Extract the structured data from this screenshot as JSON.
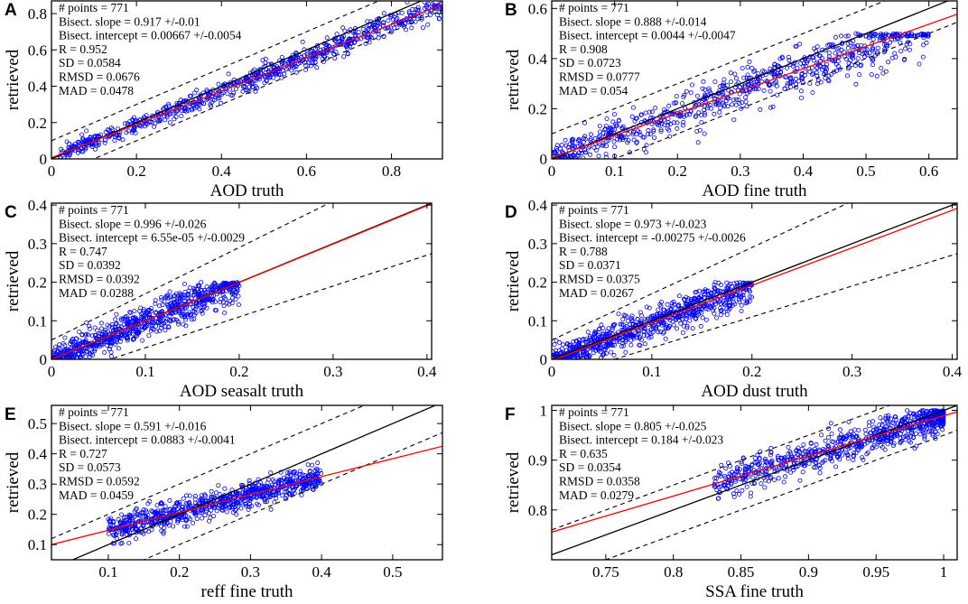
{
  "figure": {
    "ylabel": "retrieved",
    "marker_color": "#0000ff",
    "fit_color": "#ff0000",
    "identity_color": "#000000"
  },
  "chart_data": [
    {
      "letter": "A",
      "type": "scatter",
      "xlabel": "AOD truth",
      "ylabel": "retrieved",
      "xlim": [
        0,
        0.92
      ],
      "ylim": [
        0,
        0.87
      ],
      "xticks": [
        0,
        0.2,
        0.4,
        0.6,
        0.8
      ],
      "xticklabels": [
        "0",
        "0.2",
        "0.4",
        "0.6",
        "0.8"
      ],
      "yticks": [
        0,
        0.2,
        0.4,
        0.6,
        0.8
      ],
      "yticklabels": [
        "0",
        "0.2",
        "0.4",
        "0.6",
        "0.8"
      ],
      "stats": [
        "# points = 771",
        "Bisect. slope = 0.917 +/-0.01",
        "Bisect. intercept = 0.00667 +/-0.0054",
        "R = 0.952",
        "SD = 0.0584",
        "RMSD = 0.0676",
        "MAD = 0.0478"
      ],
      "slope": 0.917,
      "intercept": 0.00667,
      "band": 0.1,
      "band_mode": "abs",
      "band_rel": 0,
      "x_range": [
        0.02,
        0.92
      ],
      "noise": 0.045,
      "noise_rel": 0.3,
      "seed": 11
    },
    {
      "letter": "B",
      "type": "scatter",
      "xlabel": "AOD fine truth",
      "ylabel": "retrieved",
      "xlim": [
        0,
        0.645
      ],
      "ylim": [
        0,
        0.63
      ],
      "xticks": [
        0,
        0.1,
        0.2,
        0.3,
        0.4,
        0.5,
        0.6
      ],
      "xticklabels": [
        "0",
        "0.1",
        "0.2",
        "0.3",
        "0.4",
        "0.5",
        "0.6"
      ],
      "yticks": [
        0,
        0.2,
        0.4,
        0.6
      ],
      "yticklabels": [
        "0",
        "0.2",
        "0.4",
        "0.6"
      ],
      "stats": [
        "# points = 771",
        "Bisect. slope = 0.888 +/-0.014",
        "Bisect. intercept = 0.0044 +/-0.0047",
        "R = 0.908",
        "SD = 0.0723",
        "RMSD = 0.0777",
        "MAD = 0.054"
      ],
      "slope": 0.888,
      "intercept": 0.0044,
      "band": 0.1,
      "band_mode": "abs",
      "band_rel": 0,
      "x_range": [
        0.0,
        0.6
      ],
      "noise": 0.07,
      "noise_rel": 0.2,
      "cap": 0.5,
      "seed": 23
    },
    {
      "letter": "C",
      "type": "scatter",
      "xlabel": "AOD seasalt truth",
      "ylabel": "retrieved",
      "xlim": [
        0,
        0.405
      ],
      "ylim": [
        0,
        0.405
      ],
      "xticks": [
        0,
        0.1,
        0.2,
        0.3,
        0.4
      ],
      "xticklabels": [
        "0",
        "0.1",
        "0.2",
        "0.3",
        "0.4"
      ],
      "yticks": [
        0,
        0.1,
        0.2,
        0.3,
        0.4
      ],
      "yticklabels": [
        "0",
        "0.1",
        "0.2",
        "0.3",
        "0.4"
      ],
      "stats": [
        "# points = 771",
        "Bisect. slope = 0.996 +/-0.026",
        "Bisect. intercept = 6.55e-05 +/-0.0029",
        "R = 0.747",
        "SD = 0.0392",
        "RMSD = 0.0392",
        "MAD = 0.0288"
      ],
      "slope": 0.996,
      "intercept": 6.55e-05,
      "band": 0.05,
      "band_mode": "both",
      "band_rel": 0.2,
      "x_range": [
        0.0,
        0.2
      ],
      "noise": 0.035,
      "noise_rel": 0.15,
      "cap": 0.2,
      "seed": 37
    },
    {
      "letter": "D",
      "type": "scatter",
      "xlabel": "AOD dust truth",
      "ylabel": "retrieved",
      "xlim": [
        0,
        0.405
      ],
      "ylim": [
        0,
        0.405
      ],
      "xticks": [
        0,
        0.1,
        0.2,
        0.3,
        0.4
      ],
      "xticklabels": [
        "0",
        "0.1",
        "0.2",
        "0.3",
        "0.4"
      ],
      "yticks": [
        0,
        0.1,
        0.2,
        0.3,
        0.4
      ],
      "yticklabels": [
        "0",
        "0.1",
        "0.2",
        "0.3",
        "0.4"
      ],
      "stats": [
        "# points = 771",
        "Bisect. slope = 0.973 +/-0.023",
        "Bisect. intercept = -0.00275 +/-0.0026",
        "R = 0.788",
        "SD = 0.0371",
        "RMSD = 0.0375",
        "MAD = 0.0267"
      ],
      "slope": 0.973,
      "intercept": -0.00275,
      "band": 0.05,
      "band_mode": "both",
      "band_rel": 0.2,
      "x_range": [
        0.0,
        0.2
      ],
      "noise": 0.035,
      "noise_rel": 0.15,
      "cap": 0.2,
      "seed": 53
    },
    {
      "letter": "E",
      "type": "scatter",
      "xlabel": "reff fine truth",
      "ylabel": "retrieved",
      "xlim": [
        0.02,
        0.57
      ],
      "ylim": [
        0.05,
        0.56
      ],
      "xticks": [
        0.1,
        0.2,
        0.3,
        0.4,
        0.5
      ],
      "xticklabels": [
        "0.1",
        "0.2",
        "0.3",
        "0.4",
        "0.5"
      ],
      "yticks": [
        0.1,
        0.2,
        0.3,
        0.4,
        0.5
      ],
      "yticklabels": [
        "0.1",
        "0.2",
        "0.3",
        "0.4",
        "0.5"
      ],
      "stats": [
        "# points = 771",
        "Bisect. slope = 0.591 +/-0.016",
        "Bisect. intercept = 0.0883 +/-0.0041",
        "R = 0.727",
        "SD = 0.0573",
        "RMSD = 0.0592",
        "MAD = 0.0459"
      ],
      "slope": 0.591,
      "intercept": 0.0883,
      "band": 0.1,
      "band_mode": "abs",
      "band_rel": 0,
      "x_range": [
        0.1,
        0.4
      ],
      "noise": 0.035,
      "noise_rel": 0,
      "seed": 71
    },
    {
      "letter": "F",
      "type": "scatter",
      "xlabel": "SSA fine truth",
      "ylabel": "retrieved",
      "xlim": [
        0.71,
        1.01
      ],
      "ylim": [
        0.7,
        1.01
      ],
      "xticks": [
        0.75,
        0.8,
        0.85,
        0.9,
        0.95,
        1
      ],
      "xticklabels": [
        "0.75",
        "0.8",
        "0.85",
        "0.9",
        "0.95",
        "1"
      ],
      "yticks": [
        0.8,
        0.9,
        1
      ],
      "yticklabels": [
        "0.8",
        "0.9",
        "1"
      ],
      "stats": [
        "# points = 771",
        "Bisect. slope = 0.805 +/-0.025",
        "Bisect. intercept = 0.184 +/-0.023",
        "R = 0.635",
        "SD = 0.0354",
        "RMSD = 0.0358",
        "MAD = 0.0279"
      ],
      "slope": 0.805,
      "intercept": 0.184,
      "band": 0.05,
      "band_mode": "abs",
      "band_rel": 0,
      "x_range": [
        0.83,
        1.0
      ],
      "noise": 0.028,
      "noise_rel": 0,
      "cap": 1.0,
      "seed": 97
    }
  ]
}
